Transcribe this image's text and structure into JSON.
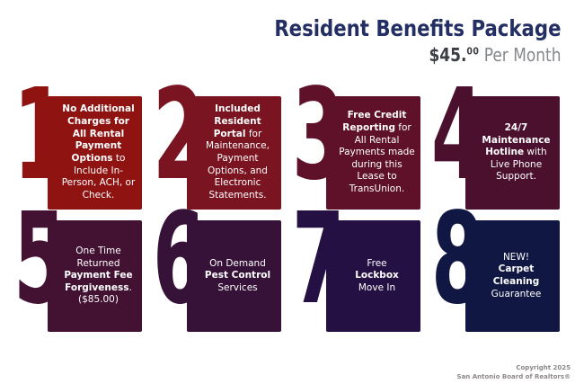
{
  "header": {
    "title": "Resident Benefits Package",
    "price": {
      "dollars": "$45.",
      "cents": "00",
      "suffix": " Per Month"
    }
  },
  "cards": [
    {
      "number": "1",
      "color": "#8e1311",
      "segments": [
        {
          "b": 1,
          "t": "No Additional Charges for All Rental Payment Options"
        },
        {
          "b": 0,
          "t": " to Include In-Person, ACH, or Check."
        }
      ]
    },
    {
      "number": "2",
      "color": "#7a1420",
      "segments": [
        {
          "b": 1,
          "t": "Included Resident Portal"
        },
        {
          "b": 0,
          "t": " for Maintenance, Payment Options, and Electronic Statements."
        }
      ]
    },
    {
      "number": "3",
      "color": "#5f1129",
      "segments": [
        {
          "b": 1,
          "t": "Free Credit Reporting"
        },
        {
          "b": 0,
          "t": " for All Rental Payments made during this Lease to TransUnion."
        }
      ]
    },
    {
      "number": "4",
      "color": "#4c102f",
      "segments": [
        {
          "b": 1,
          "t": "24/7 Maintenance Hotline"
        },
        {
          "b": 0,
          "t": " with Live Phone Support."
        }
      ]
    },
    {
      "number": "5",
      "color": "#431233",
      "segments": [
        {
          "b": 0,
          "t": "One Time Returned "
        },
        {
          "b": 1,
          "t": "Payment Fee Forgiveness"
        },
        {
          "b": 0,
          "t": ". ($85.00)"
        }
      ]
    },
    {
      "number": "6",
      "color": "#361238",
      "segments": [
        {
          "b": 0,
          "t": "On Demand",
          "br": 1
        },
        {
          "b": 1,
          "t": "Pest Control",
          "br": 1
        },
        {
          "b": 0,
          "t": "Services"
        }
      ]
    },
    {
      "number": "7",
      "color": "#241043",
      "segments": [
        {
          "b": 0,
          "t": "Free",
          "br": 1
        },
        {
          "b": 1,
          "t": "Lockbox",
          "br": 1
        },
        {
          "b": 0,
          "t": "Move In"
        }
      ]
    },
    {
      "number": "8",
      "color": "#101743",
      "segments": [
        {
          "b": 0,
          "t": "NEW!",
          "br": 1
        },
        {
          "b": 1,
          "t": "Carpet Cleaning"
        },
        {
          "b": 0,
          "t": " Guarantee"
        }
      ]
    }
  ],
  "footer": {
    "line1": "Copyright 2025",
    "line2": "San Antonio Board of Realtors®"
  },
  "colors": {
    "title": "#232e63",
    "price": "#3b3e45",
    "price_suffix": "#85888d",
    "background": "#ffffff",
    "card_text": "#ffffff",
    "footer_text": "#8d8888"
  }
}
